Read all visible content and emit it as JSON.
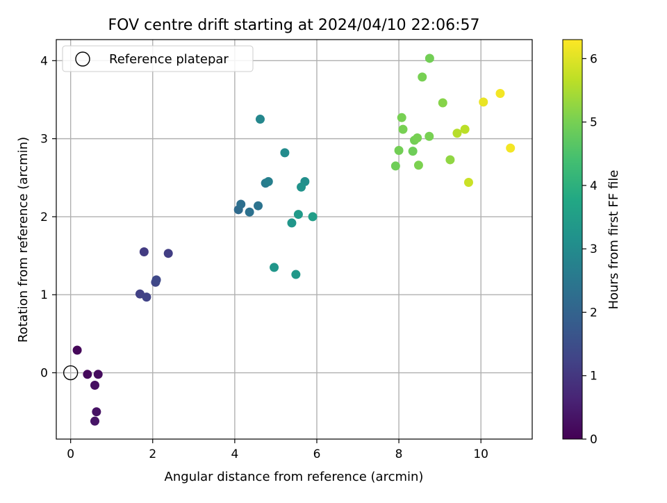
{
  "chart_data": {
    "type": "scatter",
    "title": "FOV centre drift starting at 2024/04/10 22:06:57",
    "xlabel": "Angular distance from reference (arcmin)",
    "ylabel": "Rotation from reference (arcmin)",
    "xlim": [
      -0.35,
      11.25
    ],
    "ylim": [
      -0.85,
      4.27
    ],
    "xticks": [
      0,
      2,
      4,
      6,
      8,
      10
    ],
    "yticks": [
      0,
      1,
      2,
      3,
      4
    ],
    "grid": true,
    "legend": {
      "placement": "top-left",
      "entries": [
        "Reference platepar"
      ]
    },
    "reference_point": {
      "x": 0,
      "y": 0
    },
    "colorbar": {
      "label": "Hours from first FF file",
      "colormap": "viridis",
      "range": [
        0,
        6.3
      ],
      "ticks": [
        0,
        1,
        2,
        3,
        4,
        5,
        6
      ]
    },
    "points": [
      {
        "x": 0.16,
        "y": 0.29,
        "c": 0.1
      },
      {
        "x": 0.41,
        "y": -0.02,
        "c": 0.15
      },
      {
        "x": 0.67,
        "y": -0.02,
        "c": 0.2
      },
      {
        "x": 0.59,
        "y": -0.16,
        "c": 0.25
      },
      {
        "x": 0.63,
        "y": -0.5,
        "c": 0.3
      },
      {
        "x": 0.59,
        "y": -0.62,
        "c": 0.35
      },
      {
        "x": 1.79,
        "y": 1.55,
        "c": 1.1
      },
      {
        "x": 2.38,
        "y": 1.53,
        "c": 1.15
      },
      {
        "x": 1.69,
        "y": 1.01,
        "c": 1.2
      },
      {
        "x": 1.85,
        "y": 0.97,
        "c": 1.25
      },
      {
        "x": 2.07,
        "y": 1.16,
        "c": 1.3
      },
      {
        "x": 2.09,
        "y": 1.19,
        "c": 1.35
      },
      {
        "x": 4.09,
        "y": 2.09,
        "c": 2.2
      },
      {
        "x": 4.15,
        "y": 2.16,
        "c": 2.3
      },
      {
        "x": 4.36,
        "y": 2.06,
        "c": 2.35
      },
      {
        "x": 4.57,
        "y": 2.14,
        "c": 2.4
      },
      {
        "x": 4.75,
        "y": 2.43,
        "c": 2.6
      },
      {
        "x": 4.82,
        "y": 2.45,
        "c": 2.7
      },
      {
        "x": 4.62,
        "y": 3.25,
        "c": 2.9
      },
      {
        "x": 5.22,
        "y": 2.82,
        "c": 3.0
      },
      {
        "x": 5.71,
        "y": 2.45,
        "c": 3.1
      },
      {
        "x": 5.62,
        "y": 2.38,
        "c": 3.2
      },
      {
        "x": 5.39,
        "y": 1.92,
        "c": 3.3
      },
      {
        "x": 5.55,
        "y": 2.03,
        "c": 3.4
      },
      {
        "x": 5.9,
        "y": 2.0,
        "c": 3.5
      },
      {
        "x": 4.96,
        "y": 1.35,
        "c": 3.3
      },
      {
        "x": 5.49,
        "y": 1.26,
        "c": 3.35
      },
      {
        "x": 7.92,
        "y": 2.65,
        "c": 4.9
      },
      {
        "x": 8.0,
        "y": 2.85,
        "c": 4.95
      },
      {
        "x": 8.07,
        "y": 3.27,
        "c": 5.0
      },
      {
        "x": 8.1,
        "y": 3.12,
        "c": 5.0
      },
      {
        "x": 8.34,
        "y": 2.84,
        "c": 4.9
      },
      {
        "x": 8.38,
        "y": 2.98,
        "c": 4.95
      },
      {
        "x": 8.45,
        "y": 3.01,
        "c": 5.0
      },
      {
        "x": 8.48,
        "y": 2.66,
        "c": 5.05
      },
      {
        "x": 8.74,
        "y": 3.03,
        "c": 5.0
      },
      {
        "x": 8.75,
        "y": 4.03,
        "c": 4.95
      },
      {
        "x": 8.57,
        "y": 3.79,
        "c": 5.0
      },
      {
        "x": 9.07,
        "y": 3.46,
        "c": 5.15
      },
      {
        "x": 9.25,
        "y": 2.73,
        "c": 5.25
      },
      {
        "x": 9.42,
        "y": 3.07,
        "c": 5.6
      },
      {
        "x": 9.61,
        "y": 3.12,
        "c": 5.65
      },
      {
        "x": 9.7,
        "y": 2.44,
        "c": 5.8
      },
      {
        "x": 10.06,
        "y": 3.47,
        "c": 6.1
      },
      {
        "x": 10.47,
        "y": 3.58,
        "c": 6.2
      },
      {
        "x": 10.72,
        "y": 2.88,
        "c": 6.2
      }
    ]
  }
}
